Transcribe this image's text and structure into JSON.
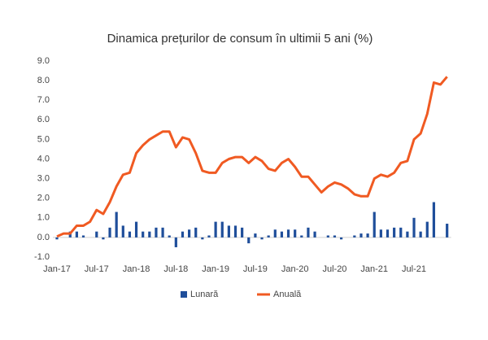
{
  "chart_data": {
    "type": "bar-line",
    "title": "Dinamica prețurilor de consum în ultimii 5 ani (%)",
    "categories": [
      "Jan-17",
      null,
      null,
      null,
      null,
      null,
      "Jul-17",
      null,
      null,
      null,
      null,
      null,
      "Jan-18",
      null,
      null,
      null,
      null,
      null,
      "Jul-18",
      null,
      null,
      null,
      null,
      null,
      "Jan-19",
      null,
      null,
      null,
      null,
      null,
      "Jul-19",
      null,
      null,
      null,
      null,
      null,
      "Jan-20",
      null,
      null,
      null,
      null,
      null,
      "Jul-20",
      null,
      null,
      null,
      null,
      null,
      "Jan-21",
      null,
      null,
      null,
      null,
      null,
      "Jul-21",
      null,
      null,
      null,
      null,
      null
    ],
    "series": [
      {
        "name": "Lunară",
        "kind": "bar",
        "color": "#1f4e9a",
        "values": [
          -0.1,
          0.0,
          0.3,
          0.3,
          0.1,
          0.0,
          0.3,
          -0.1,
          0.5,
          1.3,
          0.6,
          0.3,
          0.8,
          0.3,
          0.3,
          0.5,
          0.5,
          0.1,
          -0.5,
          0.3,
          0.4,
          0.5,
          -0.1,
          0.1,
          0.8,
          0.8,
          0.6,
          0.6,
          0.5,
          -0.3,
          0.2,
          -0.1,
          0.1,
          0.4,
          0.3,
          0.4,
          0.4,
          0.1,
          0.5,
          0.3,
          0.0,
          0.1,
          0.1,
          -0.1,
          0.0,
          0.1,
          0.2,
          0.2,
          1.3,
          0.4,
          0.4,
          0.5,
          0.5,
          0.3,
          1.0,
          0.3,
          0.8,
          1.8,
          0.0,
          0.7
        ]
      },
      {
        "name": "Anuală",
        "kind": "line",
        "color": "#f05a22",
        "values": [
          0.05,
          0.2,
          0.2,
          0.6,
          0.6,
          0.8,
          1.4,
          1.2,
          1.8,
          2.6,
          3.2,
          3.3,
          4.3,
          4.7,
          5.0,
          5.2,
          5.4,
          5.4,
          4.6,
          5.1,
          5.0,
          4.3,
          3.4,
          3.3,
          3.3,
          3.8,
          4.0,
          4.1,
          4.1,
          3.8,
          4.1,
          3.9,
          3.5,
          3.4,
          3.8,
          4.0,
          3.6,
          3.1,
          3.1,
          2.7,
          2.3,
          2.6,
          2.8,
          2.7,
          2.5,
          2.2,
          2.1,
          2.1,
          3.0,
          3.2,
          3.1,
          3.3,
          3.8,
          3.9,
          5.0,
          5.3,
          6.3,
          7.9,
          7.8,
          8.2
        ]
      }
    ],
    "ylim": [
      -1,
      9
    ],
    "yticks": [
      {
        "value": -1,
        "label": "-1.0"
      },
      {
        "value": 0,
        "label": "0.0"
      },
      {
        "value": 1,
        "label": "1.0"
      },
      {
        "value": 2,
        "label": "2.0"
      },
      {
        "value": 3,
        "label": "3.0"
      },
      {
        "value": 4,
        "label": "4.0"
      },
      {
        "value": 5,
        "label": "5.0"
      },
      {
        "value": 6,
        "label": "6.0"
      },
      {
        "value": 7,
        "label": "7.0"
      },
      {
        "value": 8,
        "label": "8.0"
      },
      {
        "value": 9,
        "label": "9.0"
      }
    ],
    "legend": "bottom"
  }
}
